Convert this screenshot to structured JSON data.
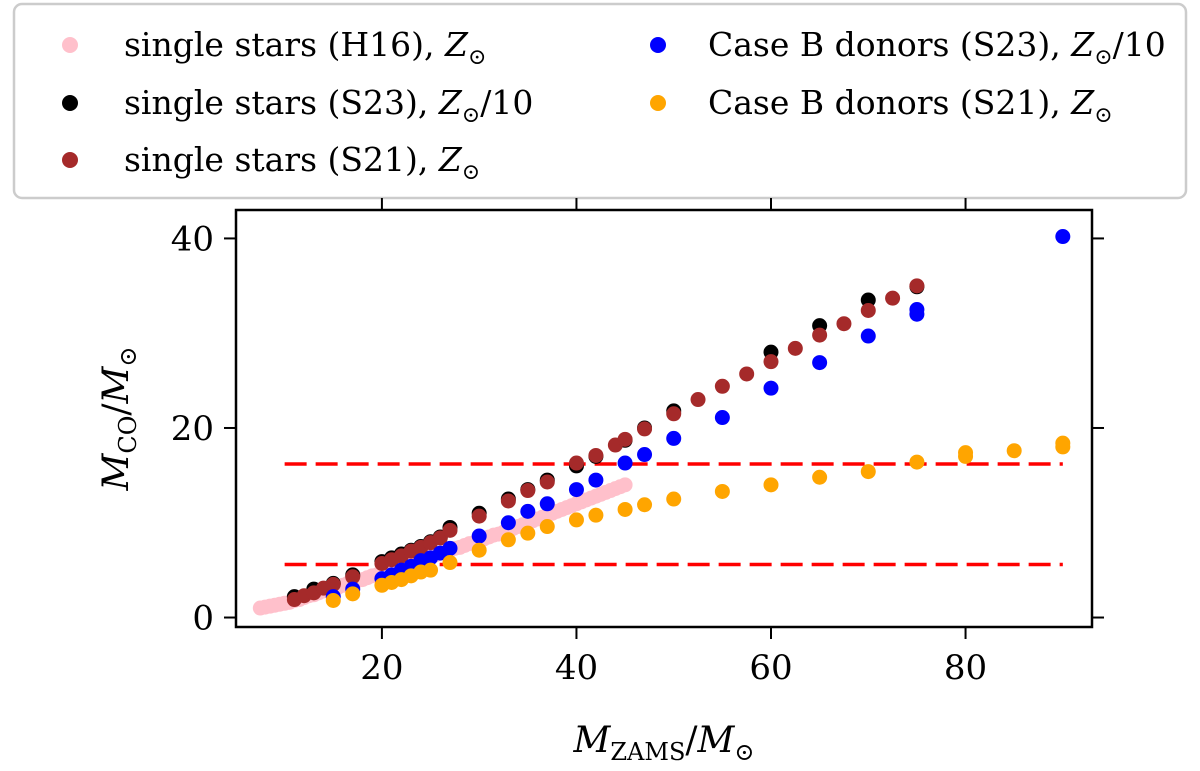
{
  "chart_data": {
    "type": "scatter",
    "title": "",
    "xlabel": {
      "main": "M",
      "sub": "ZAMS",
      "sep": "/",
      "main2": "M",
      "sub2": "⊙"
    },
    "ylabel": {
      "main": "M",
      "sub": "CO",
      "sep": "/",
      "main2": "M",
      "sub2": "⊙"
    },
    "xlim": [
      5,
      93
    ],
    "ylim": [
      -1,
      43
    ],
    "xticks": [
      20,
      40,
      60,
      80
    ],
    "yticks": [
      0,
      20,
      40
    ],
    "grid": false,
    "legend_placement": "top, above plot, two columns",
    "series": [
      {
        "name": "single stars (H16), Z⊙",
        "label_parts": [
          "single stars (H16), ",
          "Z",
          "⊙",
          ""
        ],
        "color": "#ffc0cb",
        "points": [
          [
            7.5,
            1.0
          ],
          [
            8,
            1.1
          ],
          [
            8.5,
            1.2
          ],
          [
            9,
            1.3
          ],
          [
            9.5,
            1.4
          ],
          [
            10,
            1.5
          ],
          [
            10.5,
            1.6
          ],
          [
            11,
            1.8
          ],
          [
            11.5,
            1.9
          ],
          [
            12,
            2.1
          ],
          [
            12.5,
            2.3
          ],
          [
            13,
            2.4
          ],
          [
            13.5,
            2.6
          ],
          [
            14,
            2.8
          ],
          [
            14.5,
            2.9
          ],
          [
            15,
            3.1
          ],
          [
            15.5,
            3.2
          ],
          [
            16,
            3.4
          ],
          [
            16.5,
            3.6
          ],
          [
            17,
            3.7
          ],
          [
            17.5,
            3.9
          ],
          [
            18,
            4.0
          ],
          [
            18.5,
            4.2
          ],
          [
            19,
            4.4
          ],
          [
            19.5,
            4.5
          ],
          [
            20,
            4.7
          ],
          [
            20.5,
            4.9
          ],
          [
            21,
            5.0
          ],
          [
            21.5,
            5.2
          ],
          [
            22,
            5.4
          ],
          [
            22.5,
            5.5
          ],
          [
            23,
            5.7
          ],
          [
            23.5,
            5.9
          ],
          [
            24,
            6.0
          ],
          [
            24.5,
            6.2
          ],
          [
            25,
            6.4
          ],
          [
            25.5,
            6.6
          ],
          [
            26,
            6.8
          ],
          [
            26.5,
            6.9
          ],
          [
            27,
            7.1
          ],
          [
            27.5,
            7.3
          ],
          [
            28,
            7.4
          ],
          [
            28.5,
            7.6
          ],
          [
            29,
            7.8
          ],
          [
            29.5,
            7.9
          ],
          [
            30,
            8.1
          ],
          [
            30.5,
            8.3
          ],
          [
            31,
            8.5
          ],
          [
            31.5,
            8.7
          ],
          [
            32,
            8.8
          ],
          [
            32.5,
            9.0
          ],
          [
            33,
            9.2
          ],
          [
            33.5,
            9.4
          ],
          [
            34,
            9.6
          ],
          [
            34.5,
            9.8
          ],
          [
            35,
            10.0
          ],
          [
            35.5,
            10.2
          ],
          [
            36,
            10.4
          ],
          [
            36.5,
            10.6
          ],
          [
            37,
            10.8
          ],
          [
            37.5,
            11.0
          ],
          [
            38,
            11.2
          ],
          [
            38.5,
            11.4
          ],
          [
            39,
            11.6
          ],
          [
            39.5,
            11.8
          ],
          [
            40,
            12.0
          ],
          [
            40.5,
            12.2
          ],
          [
            41,
            12.4
          ],
          [
            41.5,
            12.6
          ],
          [
            42,
            12.8
          ],
          [
            42.5,
            13.0
          ],
          [
            43,
            13.2
          ],
          [
            43.5,
            13.4
          ],
          [
            44,
            13.6
          ],
          [
            44.5,
            13.8
          ],
          [
            45,
            14.0
          ]
        ]
      },
      {
        "name": "single stars (S23), Z⊙/10",
        "label_parts": [
          "single stars (S23), ",
          "Z",
          "⊙",
          "/10"
        ],
        "color": "#000000",
        "points": [
          [
            11,
            2.2
          ],
          [
            13,
            3.0
          ],
          [
            15,
            3.6
          ],
          [
            17,
            4.5
          ],
          [
            20,
            5.9
          ],
          [
            21,
            6.3
          ],
          [
            22,
            6.7
          ],
          [
            23,
            7.1
          ],
          [
            24,
            7.5
          ],
          [
            25,
            8.0
          ],
          [
            26,
            8.5
          ],
          [
            27,
            9.5
          ],
          [
            30,
            11.0
          ],
          [
            33,
            12.5
          ],
          [
            35,
            13.5
          ],
          [
            37,
            14.5
          ],
          [
            40,
            16.0
          ],
          [
            42,
            17.0
          ],
          [
            45,
            18.7
          ],
          [
            47,
            20.0
          ],
          [
            50,
            21.8
          ],
          [
            60,
            28.0
          ],
          [
            65,
            30.8
          ],
          [
            70,
            33.5
          ],
          [
            75,
            34.9
          ]
        ]
      },
      {
        "name": "single stars (S21), Z⊙",
        "label_parts": [
          "single stars (S21), ",
          "Z",
          "⊙",
          ""
        ],
        "color": "#a52a2a",
        "points": [
          [
            11,
            1.9
          ],
          [
            12,
            2.3
          ],
          [
            13,
            2.6
          ],
          [
            14,
            3.1
          ],
          [
            15,
            3.5
          ],
          [
            17,
            4.3
          ],
          [
            20,
            5.7
          ],
          [
            21,
            6.1
          ],
          [
            22,
            6.5
          ],
          [
            23,
            7.0
          ],
          [
            24,
            7.4
          ],
          [
            25,
            7.9
          ],
          [
            26,
            8.4
          ],
          [
            27,
            9.2
          ],
          [
            30,
            10.7
          ],
          [
            33,
            12.3
          ],
          [
            35,
            13.4
          ],
          [
            37,
            14.3
          ],
          [
            40,
            16.3
          ],
          [
            42,
            17.1
          ],
          [
            44,
            18.2
          ],
          [
            45,
            18.8
          ],
          [
            47,
            19.9
          ],
          [
            50,
            21.5
          ],
          [
            52.5,
            23.0
          ],
          [
            55,
            24.4
          ],
          [
            57.5,
            25.7
          ],
          [
            60,
            27.0
          ],
          [
            62.5,
            28.4
          ],
          [
            65,
            29.8
          ],
          [
            67.5,
            31.0
          ],
          [
            70,
            32.4
          ],
          [
            72.5,
            33.7
          ],
          [
            75,
            35.0
          ]
        ]
      },
      {
        "name": "Case B donors (S23), Z⊙/10",
        "label_parts": [
          "Case B donors (S23), ",
          "Z",
          "⊙",
          "/10"
        ],
        "color": "#0000ff",
        "points": [
          [
            15,
            2.2
          ],
          [
            17,
            3.0
          ],
          [
            20,
            4.1
          ],
          [
            21,
            4.5
          ],
          [
            22,
            5.0
          ],
          [
            23,
            5.4
          ],
          [
            24,
            6.0
          ],
          [
            25,
            6.3
          ],
          [
            26,
            6.8
          ],
          [
            27,
            7.3
          ],
          [
            30,
            8.6
          ],
          [
            33,
            10.0
          ],
          [
            35,
            11.2
          ],
          [
            37,
            12.0
          ],
          [
            40,
            13.5
          ],
          [
            42,
            14.5
          ],
          [
            45,
            16.3
          ],
          [
            47,
            17.2
          ],
          [
            50,
            18.9
          ],
          [
            55,
            21.1
          ],
          [
            60,
            24.2
          ],
          [
            65,
            26.9
          ],
          [
            70,
            29.7
          ],
          [
            75,
            32.5
          ],
          [
            75,
            32.0
          ],
          [
            90,
            40.2
          ]
        ]
      },
      {
        "name": "Case B donors (S21), Z⊙",
        "label_parts": [
          "Case B donors (S21), ",
          "Z",
          "⊙",
          ""
        ],
        "color": "#ffa500",
        "points": [
          [
            15,
            1.8
          ],
          [
            17,
            2.5
          ],
          [
            20,
            3.4
          ],
          [
            21,
            3.7
          ],
          [
            22,
            4.0
          ],
          [
            23,
            4.4
          ],
          [
            24,
            4.8
          ],
          [
            25,
            5.0
          ],
          [
            27,
            5.8
          ],
          [
            30,
            7.1
          ],
          [
            33,
            8.2
          ],
          [
            35,
            8.9
          ],
          [
            37,
            9.6
          ],
          [
            40,
            10.3
          ],
          [
            42,
            10.8
          ],
          [
            45,
            11.4
          ],
          [
            47,
            11.9
          ],
          [
            50,
            12.5
          ],
          [
            55,
            13.3
          ],
          [
            60,
            14.0
          ],
          [
            65,
            14.8
          ],
          [
            70,
            15.4
          ],
          [
            75,
            16.4
          ],
          [
            80,
            17.0
          ],
          [
            80,
            17.4
          ],
          [
            85,
            17.6
          ],
          [
            90,
            18.0
          ],
          [
            90,
            18.4
          ]
        ]
      }
    ],
    "reference_lines": [
      {
        "y": 16.2,
        "x_from": 10,
        "x_to": 90,
        "color": "#ff0000",
        "style": "dashed"
      },
      {
        "y": 5.6,
        "x_from": 10,
        "x_to": 90,
        "color": "#ff0000",
        "style": "dashed"
      }
    ]
  }
}
